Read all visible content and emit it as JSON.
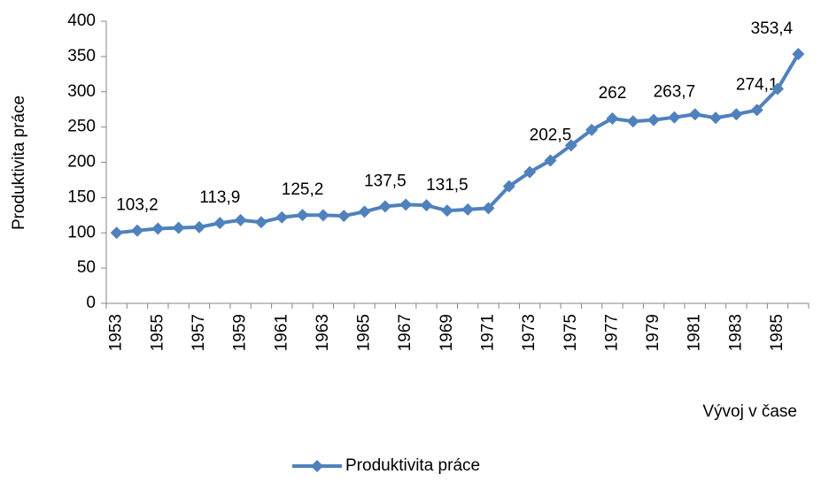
{
  "chart_data": {
    "type": "line",
    "categories": [
      "1953",
      null,
      "1955",
      null,
      "1957",
      null,
      "1959",
      null,
      "1961",
      null,
      "1963",
      null,
      "1965",
      null,
      "1967",
      null,
      "1969",
      null,
      "1971",
      null,
      "1973",
      null,
      "1975",
      null,
      "1977",
      null,
      "1979",
      null,
      "1981",
      null,
      "1983",
      null,
      "1985",
      null
    ],
    "series": [
      {
        "name": "Produktivita práce",
        "color": "#4f81bd",
        "values": [
          100,
          103.2,
          106,
          107,
          108,
          113.9,
          118,
          115,
          122,
          125.2,
          125,
          124,
          130,
          137.5,
          140,
          139,
          131.5,
          133,
          135,
          166,
          186,
          202.5,
          224,
          246,
          262,
          258,
          260,
          263.7,
          268,
          263,
          268,
          274.1,
          304,
          353.4
        ],
        "value_labels": [
          null,
          "103,2",
          null,
          null,
          null,
          "113,9",
          null,
          null,
          null,
          "125,2",
          null,
          null,
          null,
          "137,5",
          null,
          null,
          "131,5",
          null,
          null,
          null,
          null,
          "202,5",
          null,
          null,
          "262",
          null,
          null,
          "263,7",
          null,
          null,
          null,
          "274,1",
          null,
          "353,4"
        ]
      }
    ],
    "xlabel": "Vývoj v čase",
    "ylabel": "Produktivita práce",
    "ylim": [
      0,
      400
    ],
    "yticks": [
      0,
      50,
      100,
      150,
      200,
      250,
      300,
      350,
      400
    ],
    "legend": "bottom"
  }
}
